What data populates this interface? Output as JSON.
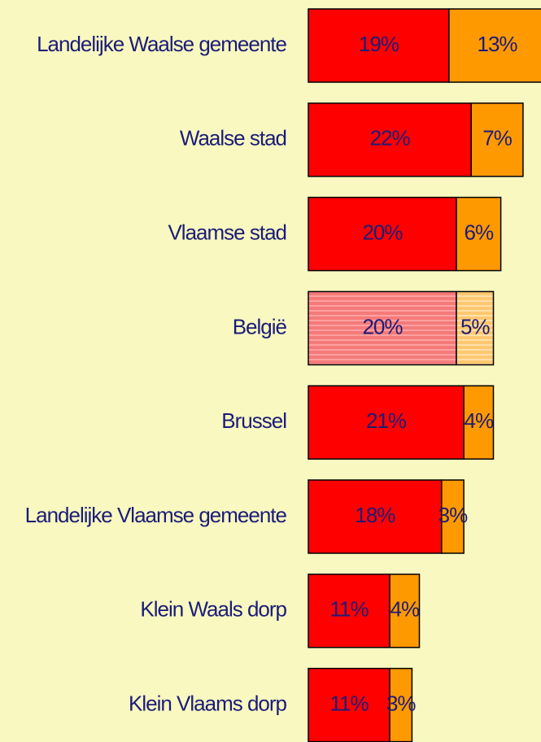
{
  "chart_data": {
    "type": "stacked-bar-horizontal",
    "categories": [
      "Landelijke Waalse gemeente",
      "Waalse stad",
      "Vlaamse stad",
      "België",
      "Brussel",
      "Landelijke Vlaamse gemeente",
      "Klein Waals dorp",
      "Klein Vlaams dorp"
    ],
    "highlight_category": "België",
    "series": [
      {
        "color": "#ff0000",
        "values": [
          19,
          22,
          20,
          20,
          21,
          18,
          11,
          11
        ],
        "value_labels": [
          "19%",
          "22%",
          "20%",
          "20%",
          "21%",
          "18%",
          "11%",
          "11%"
        ]
      },
      {
        "color": "#ff9900",
        "values": [
          13,
          7,
          6,
          5,
          4,
          3,
          4,
          3
        ],
        "value_labels": [
          "13%",
          "7%",
          "6%",
          "5%",
          "4%",
          "3%",
          "4%",
          "3%"
        ]
      }
    ]
  }
}
